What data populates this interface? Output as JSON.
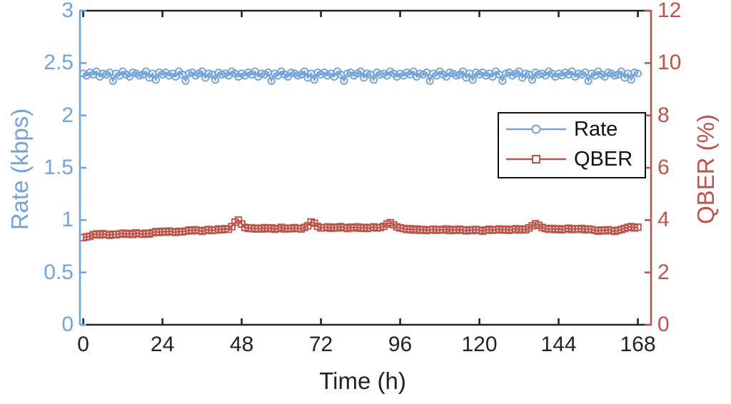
{
  "figure": {
    "background": "#ffffff",
    "axis_color": "#222222"
  },
  "chart_data": {
    "type": "line",
    "title": "",
    "xlabel": "Time (h)",
    "grid": false,
    "x_axis": {
      "label": "Time (h)",
      "ticks": [
        0,
        24,
        48,
        72,
        96,
        120,
        144,
        168
      ],
      "range": [
        -1,
        172
      ],
      "color": "#222222"
    },
    "y_axis_left": {
      "label": "Rate (kbps)",
      "ticks": [
        0,
        0.5,
        1,
        1.5,
        2,
        2.5,
        3
      ],
      "tick_labels": [
        "0",
        "0.5",
        "1",
        "1.5",
        "2",
        "2.5",
        "3"
      ],
      "range": [
        0,
        3
      ],
      "color": "#74A3D8"
    },
    "y_axis_right": {
      "label": "QBER (%)",
      "ticks": [
        0,
        2,
        4,
        6,
        8,
        10,
        12
      ],
      "tick_labels": [
        "0",
        "2",
        "4",
        "6",
        "8",
        "10",
        "12"
      ],
      "range": [
        0,
        12
      ],
      "color": "#BC544B"
    },
    "legend": {
      "position": "inside-right-middle",
      "border_color": "#111111"
    },
    "x": [
      0,
      1,
      2,
      3,
      4,
      5,
      6,
      7,
      8,
      9,
      10,
      11,
      12,
      13,
      14,
      15,
      16,
      17,
      18,
      19,
      20,
      21,
      22,
      23,
      24,
      25,
      26,
      27,
      28,
      29,
      30,
      31,
      32,
      33,
      34,
      35,
      36,
      37,
      38,
      39,
      40,
      41,
      42,
      43,
      44,
      45,
      46,
      47,
      48,
      49,
      50,
      51,
      52,
      53,
      54,
      55,
      56,
      57,
      58,
      59,
      60,
      61,
      62,
      63,
      64,
      65,
      66,
      67,
      68,
      69,
      70,
      71,
      72,
      73,
      74,
      75,
      76,
      77,
      78,
      79,
      80,
      81,
      82,
      83,
      84,
      85,
      86,
      87,
      88,
      89,
      90,
      91,
      92,
      93,
      94,
      95,
      96,
      97,
      98,
      99,
      100,
      101,
      102,
      103,
      104,
      105,
      106,
      107,
      108,
      109,
      110,
      111,
      112,
      113,
      114,
      115,
      116,
      117,
      118,
      119,
      120,
      121,
      122,
      123,
      124,
      125,
      126,
      127,
      128,
      129,
      130,
      131,
      132,
      133,
      134,
      135,
      136,
      137,
      138,
      139,
      140,
      141,
      142,
      143,
      144,
      145,
      146,
      147,
      148,
      149,
      150,
      151,
      152,
      153,
      154,
      155,
      156,
      157,
      158,
      159,
      160,
      161,
      162,
      163,
      164,
      165,
      166,
      167,
      168
    ],
    "series": [
      {
        "name": "Rate",
        "axis": "left",
        "color": "#74A3D8",
        "marker": "circle",
        "values": [
          2.4,
          2.38,
          2.41,
          2.39,
          2.42,
          2.37,
          2.4,
          2.39,
          2.41,
          2.33,
          2.4,
          2.38,
          2.42,
          2.39,
          2.37,
          2.41,
          2.4,
          2.38,
          2.39,
          2.42,
          2.36,
          2.4,
          2.34,
          2.41,
          2.39,
          2.41,
          2.38,
          2.4,
          2.37,
          2.42,
          2.39,
          2.33,
          2.4,
          2.41,
          2.38,
          2.4,
          2.42,
          2.36,
          2.4,
          2.39,
          2.34,
          2.41,
          2.39,
          2.4,
          2.38,
          2.42,
          2.4,
          2.37,
          2.4,
          2.38,
          2.41,
          2.39,
          2.42,
          2.37,
          2.4,
          2.39,
          2.41,
          2.33,
          2.4,
          2.38,
          2.42,
          2.39,
          2.37,
          2.41,
          2.4,
          2.38,
          2.39,
          2.42,
          2.36,
          2.4,
          2.34,
          2.41,
          2.39,
          2.41,
          2.38,
          2.4,
          2.37,
          2.42,
          2.39,
          2.33,
          2.4,
          2.41,
          2.38,
          2.4,
          2.42,
          2.36,
          2.4,
          2.39,
          2.34,
          2.41,
          2.39,
          2.4,
          2.38,
          2.42,
          2.4,
          2.37,
          2.4,
          2.38,
          2.41,
          2.39,
          2.42,
          2.37,
          2.4,
          2.39,
          2.41,
          2.33,
          2.4,
          2.38,
          2.42,
          2.39,
          2.37,
          2.41,
          2.4,
          2.38,
          2.39,
          2.42,
          2.36,
          2.4,
          2.34,
          2.41,
          2.39,
          2.41,
          2.38,
          2.4,
          2.37,
          2.42,
          2.39,
          2.33,
          2.4,
          2.41,
          2.38,
          2.4,
          2.42,
          2.36,
          2.4,
          2.39,
          2.34,
          2.41,
          2.39,
          2.4,
          2.38,
          2.42,
          2.4,
          2.37,
          2.4,
          2.38,
          2.41,
          2.39,
          2.42,
          2.37,
          2.4,
          2.39,
          2.41,
          2.33,
          2.4,
          2.38,
          2.42,
          2.39,
          2.37,
          2.41,
          2.4,
          2.38,
          2.39,
          2.42,
          2.36,
          2.4,
          2.34,
          2.41,
          2.4
        ]
      },
      {
        "name": "QBER",
        "axis": "right",
        "color": "#BC544B",
        "marker": "square",
        "values": [
          3.33,
          3.36,
          3.38,
          3.44,
          3.47,
          3.43,
          3.48,
          3.45,
          3.42,
          3.46,
          3.44,
          3.47,
          3.5,
          3.46,
          3.49,
          3.45,
          3.51,
          3.48,
          3.46,
          3.5,
          3.47,
          3.52,
          3.56,
          3.53,
          3.57,
          3.54,
          3.58,
          3.55,
          3.53,
          3.57,
          3.55,
          3.58,
          3.62,
          3.59,
          3.63,
          3.6,
          3.57,
          3.61,
          3.64,
          3.6,
          3.62,
          3.66,
          3.63,
          3.67,
          3.65,
          3.75,
          3.92,
          4.0,
          3.85,
          3.72,
          3.68,
          3.7,
          3.66,
          3.69,
          3.66,
          3.71,
          3.67,
          3.7,
          3.65,
          3.68,
          3.72,
          3.66,
          3.69,
          3.67,
          3.71,
          3.68,
          3.66,
          3.72,
          3.78,
          3.93,
          3.88,
          3.76,
          3.7,
          3.71,
          3.74,
          3.69,
          3.73,
          3.7,
          3.75,
          3.71,
          3.68,
          3.73,
          3.7,
          3.74,
          3.69,
          3.72,
          3.68,
          3.71,
          3.74,
          3.7,
          3.72,
          3.76,
          3.85,
          3.9,
          3.82,
          3.74,
          3.7,
          3.68,
          3.64,
          3.67,
          3.62,
          3.66,
          3.61,
          3.64,
          3.6,
          3.63,
          3.65,
          3.61,
          3.64,
          3.62,
          3.66,
          3.6,
          3.64,
          3.61,
          3.65,
          3.62,
          3.59,
          3.63,
          3.6,
          3.64,
          3.61,
          3.58,
          3.62,
          3.65,
          3.61,
          3.63,
          3.66,
          3.62,
          3.65,
          3.61,
          3.64,
          3.67,
          3.62,
          3.66,
          3.63,
          3.7,
          3.78,
          3.86,
          3.8,
          3.72,
          3.68,
          3.65,
          3.68,
          3.64,
          3.67,
          3.63,
          3.66,
          3.69,
          3.64,
          3.67,
          3.65,
          3.68,
          3.63,
          3.66,
          3.64,
          3.61,
          3.58,
          3.62,
          3.59,
          3.63,
          3.6,
          3.57,
          3.61,
          3.64,
          3.68,
          3.72,
          3.75,
          3.7,
          3.73
        ]
      }
    ]
  }
}
